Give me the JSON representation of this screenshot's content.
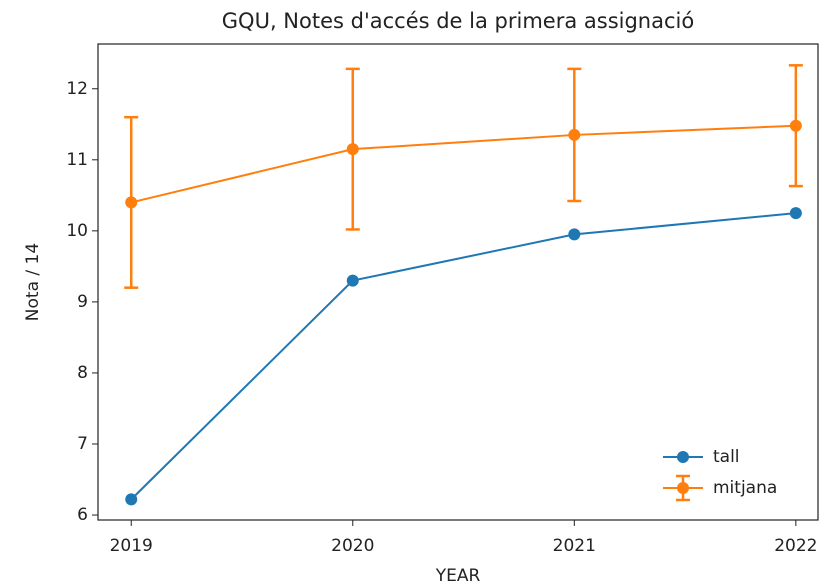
{
  "chart_data": {
    "type": "line",
    "title": "GQU, Notes d'accés de la primera assignació",
    "x_label": "YEAR",
    "y_label": "Nota / 14",
    "x": [
      2019,
      2020,
      2021,
      2022
    ],
    "series": [
      {
        "name": "tall",
        "color": "#1f77b4",
        "values": [
          6.22,
          9.3,
          9.95,
          10.25
        ]
      },
      {
        "name": "mitjana",
        "color": "#ff7f0e",
        "values": [
          10.4,
          11.15,
          11.35,
          11.48
        ],
        "errors": [
          1.2,
          1.13,
          0.93,
          0.85
        ]
      }
    ],
    "xlim": [
      2018.85,
      2022.1
    ],
    "xticks": [
      2019,
      2020,
      2021,
      2022
    ],
    "ylim": [
      5.93,
      12.63
    ],
    "yticks": [
      6,
      7,
      8,
      9,
      10,
      11,
      12
    ],
    "legend": "lower right"
  }
}
